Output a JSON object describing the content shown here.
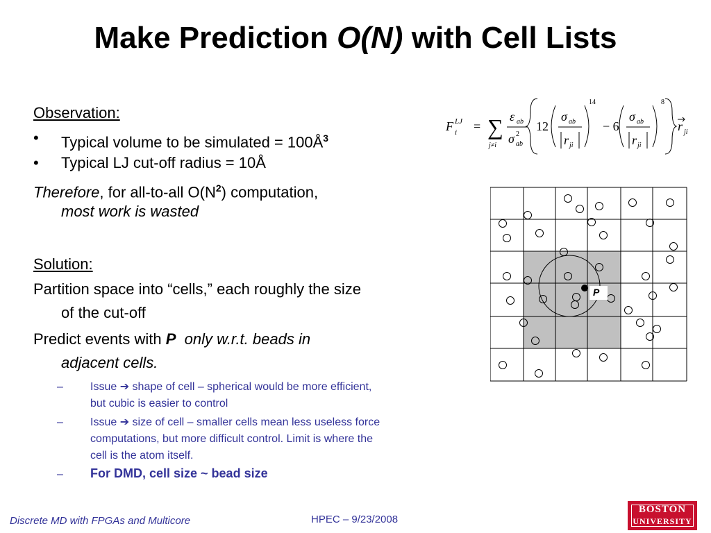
{
  "title": {
    "prefix": "Make Prediction ",
    "italic": "O(N)",
    "suffix": " with Cell Lists"
  },
  "observation": {
    "heading": "Observation:",
    "bullets": [
      {
        "dot": "•",
        "text": "Typical volume to be simulated  =  100Å",
        "sup": "3"
      },
      {
        "dot": "•",
        "text": "Typical LJ cut-off radius  =  10Å"
      }
    ],
    "therefore_italic": "Therefore",
    "therefore_rest": ", for all-to-all O(N",
    "therefore_sup": "2",
    "therefore_end": ") computation,",
    "wasted": "most work is wasted"
  },
  "solution": {
    "heading": "Solution:",
    "line1": "Partition space into “cells,” each roughly the size",
    "line2": "of the cut-off",
    "predict_prefix": "Predict events with ",
    "predict_bold": "P",
    "predict_italic": "only w.r.t. beads in",
    "predict_line2": "adjacent cells.",
    "issues": [
      {
        "dash": "–",
        "lines": [
          "Issue ➔  shape of cell – spherical would be more efficient,",
          "but cubic is easier to control"
        ]
      },
      {
        "dash": "–",
        "lines": [
          "Issue ➔  size of cell – smaller cells mean less useless force",
          "computations, but more difficult control.  Limit is where the",
          "cell is the atom itself."
        ]
      },
      {
        "dash": "–",
        "lines": [
          "For DMD, cell size ~ bead size"
        ]
      }
    ]
  },
  "formula": {
    "F": "F",
    "sup_LJ": "LJ",
    "sub_i": "i",
    "eq": "=",
    "sigma_sum": "∑",
    "sum_sub": "j≠i",
    "eps": "ε",
    "ab": "ab",
    "sig": "σ",
    "sq": "2",
    "twelve": "12",
    "minus6": "− 6",
    "r": "r",
    "ji": "ji",
    "p14": "14",
    "p8": "8"
  },
  "diagram": {
    "particle_label": "P",
    "shade_color": "#c0c0c0"
  },
  "footer": {
    "left": "Discrete MD with FPGAs and Multicore",
    "middle": "HPEC  –  9/23/2008",
    "logo_line1": "BOSTON",
    "logo_line2": "UNIVERSITY"
  },
  "colors": {
    "accent": "#333399",
    "logo": "#c8102e"
  }
}
